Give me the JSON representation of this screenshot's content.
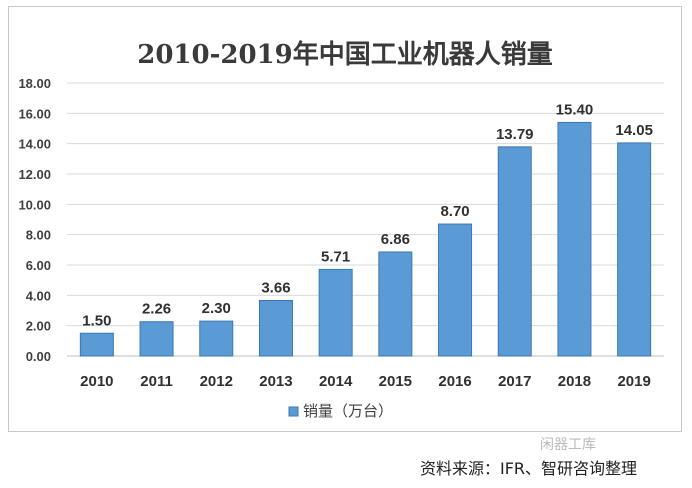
{
  "chart_data": {
    "type": "bar",
    "title": "2010-2019年中国工业机器人销量",
    "categories": [
      "2010",
      "2011",
      "2012",
      "2013",
      "2014",
      "2015",
      "2016",
      "2017",
      "2018",
      "2019"
    ],
    "series": [
      {
        "name": "销量（万台）",
        "values": [
          1.5,
          2.26,
          2.3,
          3.66,
          5.71,
          6.86,
          8.7,
          13.79,
          15.4,
          14.05
        ]
      }
    ],
    "value_labels": [
      "1.50",
      "2.26",
      "2.30",
      "3.66",
      "5.71",
      "6.86",
      "8.70",
      "13.79",
      "15.40",
      "14.05"
    ],
    "y_ticks": [
      "0.00",
      "2.00",
      "4.00",
      "6.00",
      "8.00",
      "10.00",
      "12.00",
      "14.00",
      "16.00",
      "18.00"
    ],
    "ylim": [
      0,
      18
    ],
    "grid": true,
    "legend_position": "bottom",
    "colors": {
      "bar": "#5b9bd5",
      "bar_dark": "#3b78b0",
      "grid": "#d9d9d9",
      "text": "#404040"
    }
  },
  "footer": {
    "source": "资料来源：IFR、智研咨询整理",
    "watermark": "闲器工库"
  }
}
